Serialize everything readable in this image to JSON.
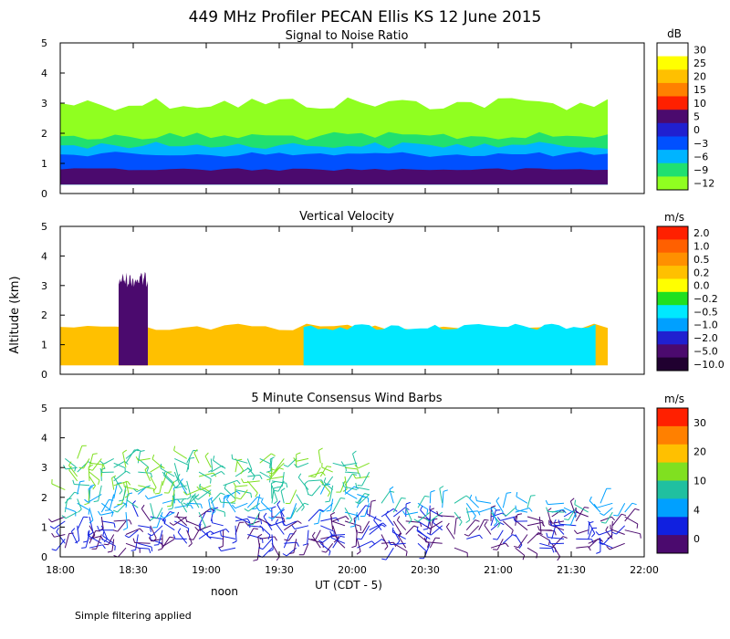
{
  "figure": {
    "title": "449 MHz Profiler PECAN Ellis KS 12 June 2015",
    "ylabel": "Altitude (km)",
    "xlabel": "UT  (CDT - 5)",
    "noon_label": "noon",
    "footnote": "Simple filtering applied"
  },
  "chart_data": [
    {
      "type": "heatmap",
      "title": "Signal to Noise Ratio",
      "x_ticks": [
        "18:00",
        "18:30",
        "19:00",
        "19:30",
        "20:00",
        "20:30",
        "21:00",
        "21:30",
        "22:00"
      ],
      "xlim": [
        "18:00",
        "22:00"
      ],
      "y_ticks": [
        "0",
        "1",
        "2",
        "3",
        "4",
        "5"
      ],
      "ylim": [
        0,
        5
      ],
      "colorbar": {
        "unit": "dB",
        "labels": [
          "30",
          "25",
          "20",
          "15",
          "10",
          "5",
          "0",
          "−3",
          "−6",
          "−9",
          "−12"
        ],
        "colors": [
          "#ffffff",
          "#ffff00",
          "#ffc000",
          "#ff8000",
          "#ff2000",
          "#4b0a6e",
          "#2020d0",
          "#0050ff",
          "#00b4ff",
          "#20e070",
          "#90ff20"
        ]
      },
      "bands": [
        {
          "level_color": "#90ff20",
          "from": "18:00",
          "to": "21:45",
          "base_km": 0.3,
          "top_km": 3.0
        },
        {
          "level_color": "#20e070",
          "from": "18:00",
          "to": "21:45",
          "base_km": 0.3,
          "top_km": 1.9
        },
        {
          "level_color": "#00b4ff",
          "from": "18:00",
          "to": "21:45",
          "base_km": 0.3,
          "top_km": 1.6
        },
        {
          "level_color": "#0050ff",
          "from": "18:00",
          "to": "21:45",
          "base_km": 0.3,
          "top_km": 1.3
        },
        {
          "level_color": "#4b0a6e",
          "from": "18:00",
          "to": "21:45",
          "base_km": 0.3,
          "top_km": 0.8
        }
      ]
    },
    {
      "type": "heatmap",
      "title": "Vertical Velocity",
      "x_ticks": [
        "18:00",
        "18:30",
        "19:00",
        "19:30",
        "20:00",
        "20:30",
        "21:00",
        "21:30",
        "22:00"
      ],
      "xlim": [
        "18:00",
        "22:00"
      ],
      "y_ticks": [
        "0",
        "1",
        "2",
        "3",
        "4",
        "5"
      ],
      "ylim": [
        0,
        5
      ],
      "colorbar": {
        "unit": "m/s",
        "labels": [
          "2.0",
          "1.0",
          "0.5",
          "0.2",
          "0.0",
          "−0.2",
          "−0.5",
          "−1.0",
          "−2.0",
          "−5.0",
          "−10.0"
        ],
        "colors": [
          "#ff2000",
          "#ff6000",
          "#ff9000",
          "#ffc000",
          "#ffff00",
          "#20e020",
          "#00e8ff",
          "#00a0ff",
          "#2020d0",
          "#4b0a6e",
          "#200030"
        ]
      },
      "bands": [
        {
          "level_color": "#ffc000",
          "from": "18:00",
          "to": "21:45",
          "base_km": 0.3,
          "top_km": 1.6
        },
        {
          "level_color": "#00e8ff",
          "from": "19:40",
          "to": "21:40",
          "base_km": 0.3,
          "top_km": 1.6
        },
        {
          "level_color": "#4b0a6e",
          "from": "18:24",
          "to": "18:36",
          "base_km": 0.3,
          "top_km": 3.2
        }
      ]
    },
    {
      "type": "wind_barbs",
      "title": "5 Minute Consensus Wind Barbs",
      "interval_minutes": 5,
      "x_ticks": [
        "18:00",
        "18:30",
        "19:00",
        "19:30",
        "20:00",
        "20:30",
        "21:00",
        "21:30",
        "22:00"
      ],
      "xlim": [
        "18:00",
        "22:00"
      ],
      "y_ticks": [
        "0",
        "1",
        "2",
        "3",
        "4",
        "5"
      ],
      "ylim": [
        0,
        5
      ],
      "colorbar": {
        "unit": "m/s",
        "labels": [
          "30",
          "20",
          "10",
          "4",
          "0"
        ],
        "colors": [
          "#ff2000",
          "#ff8000",
          "#ffc000",
          "#80e020",
          "#20c0a0",
          "#00a0ff",
          "#1020e0",
          "#4b0a6e"
        ]
      },
      "altitude_range_km": [
        0.3,
        3.4
      ]
    }
  ]
}
